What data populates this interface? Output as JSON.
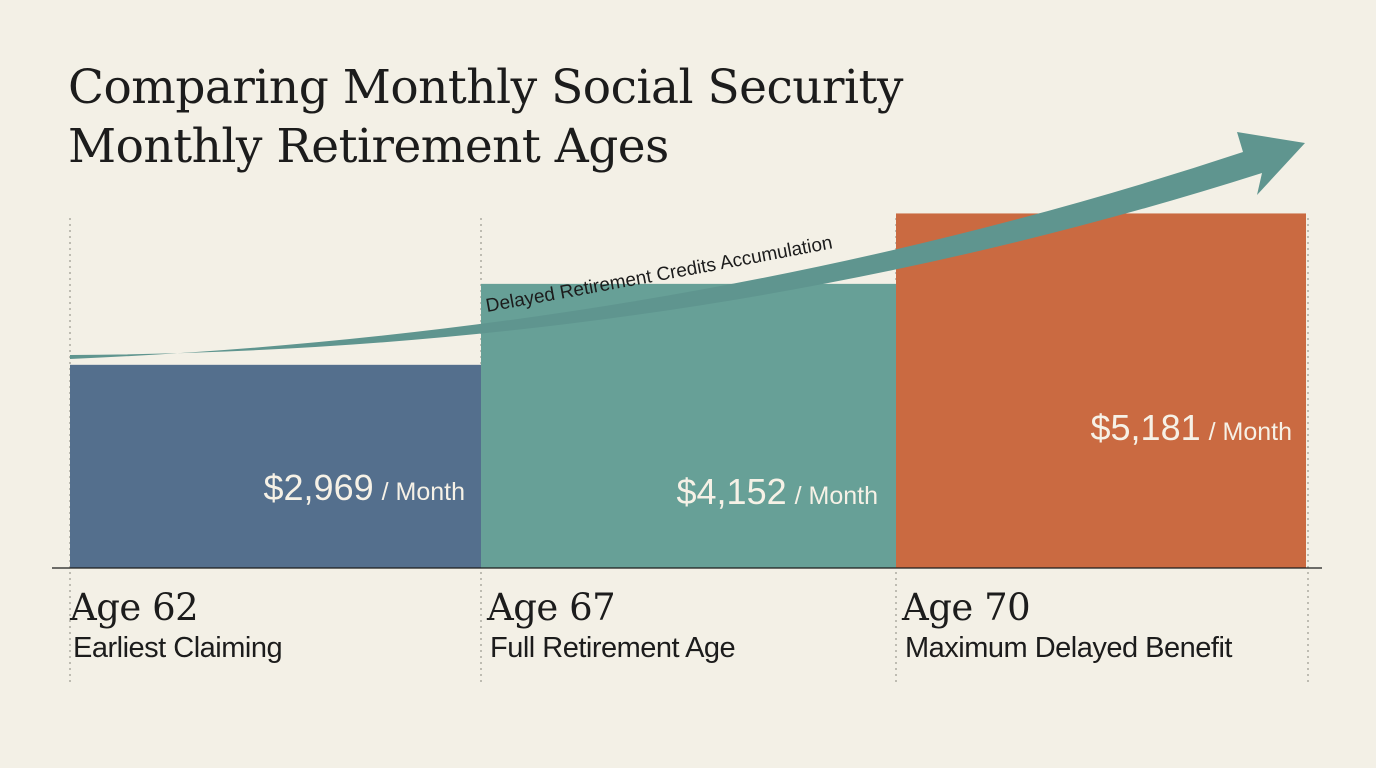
{
  "title_lines": [
    "Comparing Monthly Social Security",
    "Monthly Retirement Ages"
  ],
  "arrow_label": "Delayed Retirement Credits Accumulation",
  "colors": {
    "background": "#f3f0e6",
    "bar_age62": "#546f8d",
    "bar_age67": "#67a097",
    "bar_age70": "#ca6a41",
    "arrow": "#5f958f",
    "text": "#1c1c1c"
  },
  "chart_data": {
    "type": "bar",
    "title": "Comparing Monthly Social Security Monthly Retirement Ages",
    "categories": [
      "Age 62",
      "Age 67",
      "Age 70"
    ],
    "subtitles": [
      "Earliest Claiming",
      "Full Retirement Age",
      "Maximum Delayed Benefit"
    ],
    "values": [
      2969,
      4152,
      5181
    ],
    "value_labels": [
      "$2,969",
      "$4,152",
      "$5,181"
    ],
    "unit_label": "/ Month",
    "ylim": [
      0,
      8300
    ],
    "grid": false
  }
}
